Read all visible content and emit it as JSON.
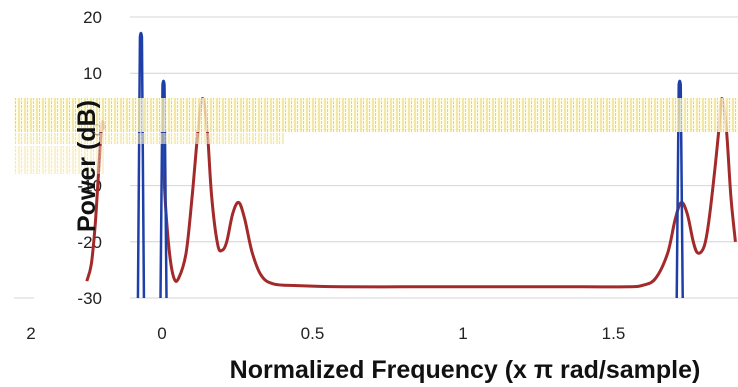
{
  "chart_data": {
    "type": "line",
    "xlabel": "Normalized Frequency (x π rad/sample)",
    "ylabel": "Power (dB)",
    "xlim": [
      -0.02,
      1.91
    ],
    "ylim": [
      -30,
      20
    ],
    "x_ticks": [
      "0",
      "0.5",
      "1",
      "1.5"
    ],
    "y_ticks": [
      "20",
      "10",
      "0",
      "-10",
      "-20",
      "-30"
    ],
    "left_panel_tick": "2",
    "grid": true,
    "series": [
      {
        "style": "curve",
        "color": "#a32a2a",
        "points": [
          [
            0.0,
            1
          ],
          [
            0.01,
            -12
          ],
          [
            0.025,
            -22
          ],
          [
            0.04,
            -26.5
          ],
          [
            0.055,
            -26.5
          ],
          [
            0.08,
            -22
          ],
          [
            0.1,
            -12
          ],
          [
            0.12,
            0
          ],
          [
            0.135,
            5.5
          ],
          [
            0.15,
            0
          ],
          [
            0.165,
            -12
          ],
          [
            0.185,
            -20.5
          ],
          [
            0.2,
            -21.5
          ],
          [
            0.215,
            -20
          ],
          [
            0.235,
            -15
          ],
          [
            0.255,
            -13
          ],
          [
            0.275,
            -16
          ],
          [
            0.3,
            -22
          ],
          [
            0.33,
            -26
          ],
          [
            0.37,
            -27.5
          ],
          [
            0.45,
            -27.8
          ],
          [
            0.6,
            -28
          ],
          [
            0.8,
            -28
          ],
          [
            1.0,
            -28
          ],
          [
            1.2,
            -28
          ],
          [
            1.4,
            -28
          ],
          [
            1.55,
            -28
          ],
          [
            1.6,
            -27.7
          ],
          [
            1.64,
            -26.5
          ],
          [
            1.68,
            -22
          ],
          [
            1.705,
            -16
          ],
          [
            1.725,
            -13
          ],
          [
            1.745,
            -15
          ],
          [
            1.765,
            -20
          ],
          [
            1.78,
            -22
          ],
          [
            1.8,
            -21
          ],
          [
            1.815,
            -17
          ],
          [
            1.835,
            -8
          ],
          [
            1.85,
            0
          ],
          [
            1.86,
            5.5
          ],
          [
            1.875,
            0
          ],
          [
            1.89,
            -12
          ],
          [
            1.905,
            -20
          ]
        ]
      },
      {
        "style": "curve",
        "color": "#a32a2a",
        "points": [
          [
            -0.25,
            -27
          ],
          [
            -0.235,
            -24
          ],
          [
            -0.222,
            -17
          ],
          [
            -0.21,
            -7
          ],
          [
            -0.2,
            1
          ],
          [
            -0.19,
            0
          ]
        ]
      },
      {
        "style": "spikes",
        "color": "#1f3fa8",
        "points": [
          [
            -0.07,
            17.5
          ],
          [
            0.005,
            9
          ],
          [
            1.72,
            9
          ]
        ]
      }
    ]
  }
}
